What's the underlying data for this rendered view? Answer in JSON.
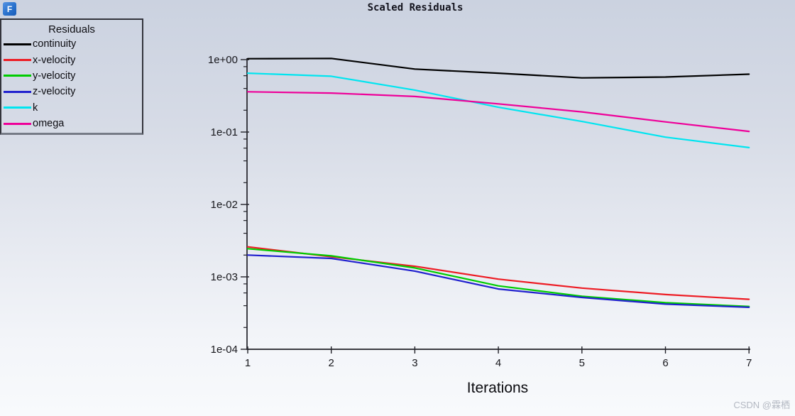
{
  "window": {
    "icon": "fluent-f-icon",
    "icon_letter": "F"
  },
  "title": "Scaled Residuals",
  "legend": {
    "title": "Residuals"
  },
  "watermark": "CSDN @霖栖",
  "chart_data": {
    "type": "line",
    "title": "Scaled Residuals",
    "xlabel": "Iterations",
    "ylabel": "",
    "y_scale": "log",
    "xlim": [
      1,
      7
    ],
    "ylim": [
      0.0001,
      1
    ],
    "grid": false,
    "legend_position": "top-left-outside",
    "x_ticks": [
      1,
      2,
      3,
      4,
      5,
      6,
      7
    ],
    "y_tick_labels": [
      "1e+00",
      "1e-01",
      "1e-02",
      "1e-03",
      "1e-04"
    ],
    "x": [
      1,
      2,
      3,
      4,
      5,
      6,
      7
    ],
    "series": [
      {
        "name": "continuity",
        "color": "#000000",
        "values": [
          1.03,
          1.04,
          0.74,
          0.65,
          0.56,
          0.575,
          0.63
        ]
      },
      {
        "name": "x-velocity",
        "color": "#ed1c24",
        "values": [
          0.0026,
          0.0019,
          0.0014,
          0.00093,
          0.0007,
          0.00057,
          0.00049
        ]
      },
      {
        "name": "y-velocity",
        "color": "#00cc00",
        "values": [
          0.00245,
          0.00195,
          0.00133,
          0.00075,
          0.00054,
          0.00044,
          0.00039
        ]
      },
      {
        "name": "z-velocity",
        "color": "#2121ce",
        "values": [
          0.002,
          0.0018,
          0.0012,
          0.00068,
          0.00052,
          0.00042,
          0.00038
        ]
      },
      {
        "name": "k",
        "color": "#00e5f0",
        "values": [
          0.65,
          0.59,
          0.38,
          0.22,
          0.14,
          0.085,
          0.061
        ]
      },
      {
        "name": "omega",
        "color": "#ee0099",
        "values": [
          0.36,
          0.345,
          0.31,
          0.245,
          0.19,
          0.138,
          0.102
        ]
      }
    ]
  }
}
